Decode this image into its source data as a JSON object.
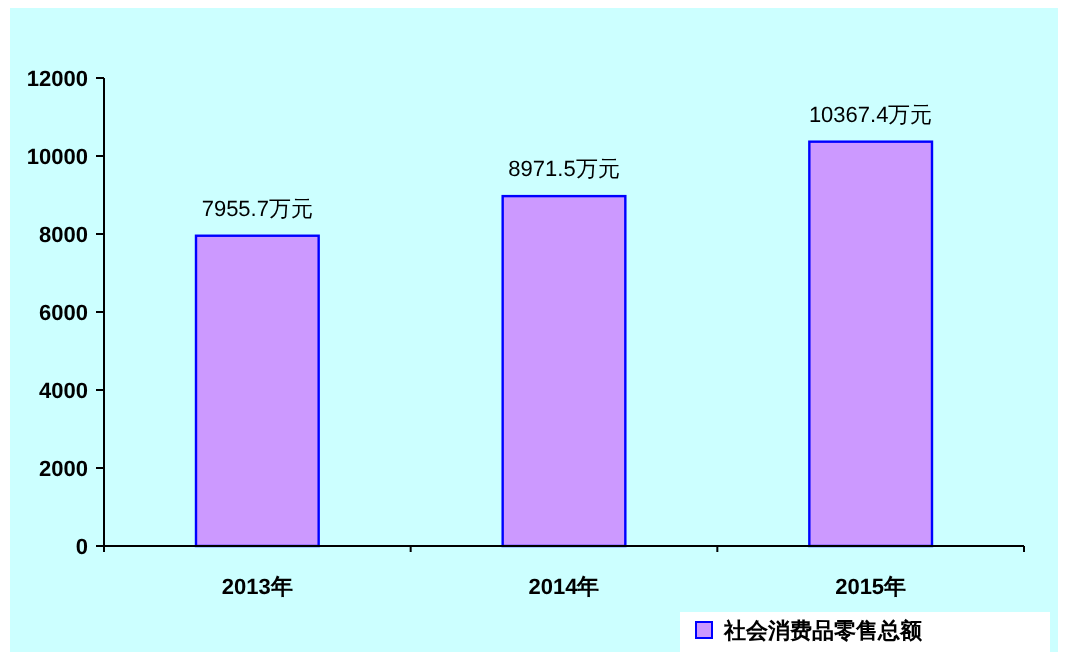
{
  "chart_data": {
    "type": "bar",
    "categories": [
      "2013年",
      "2014年",
      "2015年"
    ],
    "series": [
      {
        "name": "社会消费品零售总额",
        "color": "#cc99ff",
        "values": [
          7955.7,
          8971.5,
          10367.4
        ],
        "value_labels": [
          "7955.7万元",
          "8971.5万元",
          "10367.4万元"
        ]
      }
    ],
    "ylim": [
      0,
      12000
    ],
    "yticks": [
      0,
      2000,
      4000,
      6000,
      8000,
      10000,
      12000
    ],
    "legend": "bottom right"
  }
}
